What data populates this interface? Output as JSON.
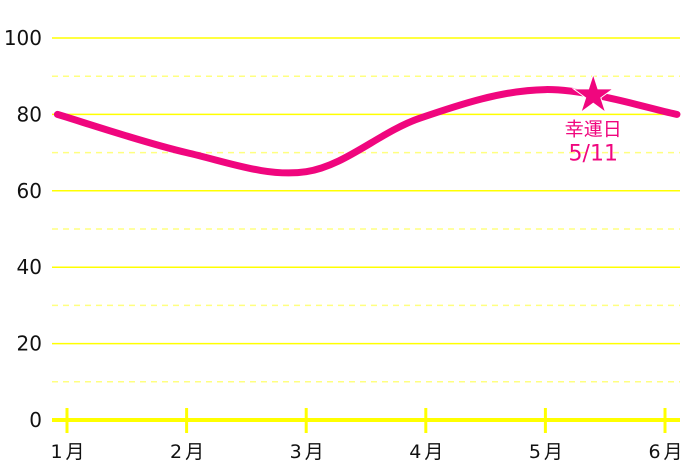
{
  "chart_data": {
    "type": "line",
    "title": "",
    "xlabel": "",
    "ylabel": "",
    "categories": [
      "1月",
      "2月",
      "3月",
      "4月",
      "5月",
      "6月"
    ],
    "ylim": [
      0,
      100
    ],
    "yticks": [
      0,
      20,
      40,
      60,
      80,
      100
    ],
    "minor_grid": [
      10,
      30,
      50,
      70,
      90
    ],
    "grid": true,
    "series": [
      {
        "color": "#f0067e",
        "points": [
          [
            0.92,
            80
          ],
          [
            2,
            70
          ],
          [
            3,
            65
          ],
          [
            3.95,
            79
          ],
          [
            5,
            86.5
          ],
          [
            6.1,
            80
          ]
        ]
      }
    ],
    "annotation": {
      "x": 5.4,
      "y": 85,
      "marker": "star-icon",
      "lines": [
        "幸運日",
        "5/11"
      ],
      "color": "#f0067e"
    },
    "colors": {
      "axis": "#ffff00",
      "grid": "#ffff80",
      "line": "#f0067e"
    }
  }
}
